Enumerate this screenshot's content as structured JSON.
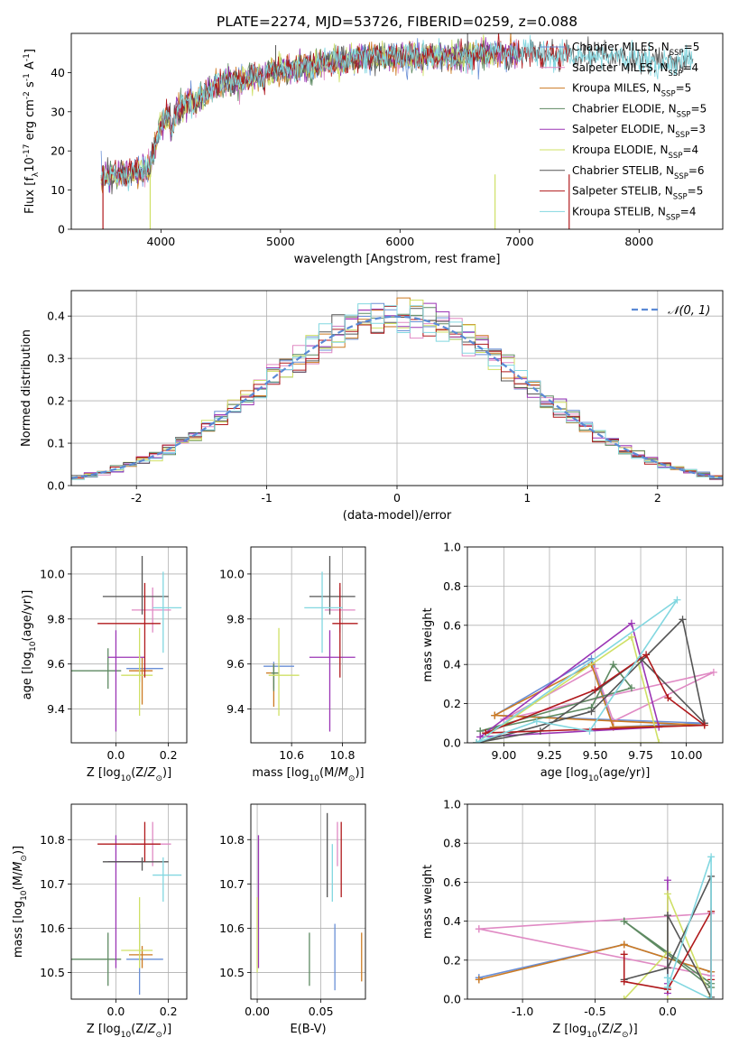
{
  "figure": {
    "title": "PLATE=2274, MJD=53726, FIBERID=0259, z=0.088",
    "models": [
      {
        "name": "Chabrier MILES",
        "nssp": "5",
        "color": "#6a8fd6"
      },
      {
        "name": "Salpeter MILES",
        "nssp": "4",
        "color": "#e08ac4"
      },
      {
        "name": "Kroupa MILES",
        "nssp": "5",
        "color": "#cc7a22"
      },
      {
        "name": "Chabrier ELODIE",
        "nssp": "5",
        "color": "#5e8a62"
      },
      {
        "name": "Salpeter ELODIE",
        "nssp": "3",
        "color": "#9b35b5"
      },
      {
        "name": "Kroupa ELODIE",
        "nssp": "4",
        "color": "#cfe066"
      },
      {
        "name": "Chabrier STELIB",
        "nssp": "6",
        "color": "#555555"
      },
      {
        "name": "Salpeter STELIB",
        "nssp": "5",
        "color": "#b0191c"
      },
      {
        "name": "Kroupa STELIB",
        "nssp": "4",
        "color": "#82d7e0"
      }
    ]
  },
  "chart_data": [
    {
      "type": "line",
      "panel": "spectrum",
      "title": "PLATE=2274, MJD=53726, FIBERID=0259, z=0.088",
      "xlabel": "wavelength [Angstrom, rest frame]",
      "ylabel": "Flux [fλ10^-17 erg cm^-2 s^-1 A^-1]",
      "xlim": [
        3250,
        8700
      ],
      "ylim": [
        0,
        50
      ],
      "xticks": [
        4000,
        5000,
        6000,
        7000,
        8000
      ],
      "yticks": [
        0,
        10,
        20,
        30,
        40
      ],
      "grid": false,
      "legend": "top-right",
      "continuum": {
        "x": [
          3500,
          3700,
          3900,
          4000,
          4100,
          4300,
          4500,
          4700,
          4900,
          5100,
          5300,
          5500,
          5700,
          5900,
          6100,
          6300,
          6500,
          6700,
          6900,
          7100,
          7300,
          7500,
          7700,
          7900,
          8100,
          8300
        ],
        "y": [
          13,
          14,
          15,
          27,
          30,
          33,
          37,
          38,
          40,
          41,
          42,
          43,
          44,
          44,
          44,
          44,
          44,
          45,
          45,
          45,
          44,
          44,
          44,
          44,
          43,
          43
        ]
      }
    },
    {
      "type": "bar",
      "panel": "residuals",
      "xlabel": "(data-model)/error",
      "ylabel": "Normed distribution",
      "xlim": [
        -2.5,
        2.5
      ],
      "ylim": [
        0,
        0.46
      ],
      "xticks": [
        -2,
        -1,
        0,
        1,
        2
      ],
      "yticks": [
        0.0,
        0.1,
        0.2,
        0.3,
        0.4
      ],
      "grid": true,
      "legend": "top-right",
      "reference": {
        "name": "𝒩(0, 1)",
        "color": "#5b8ad6",
        "style": "dashed"
      },
      "bin_width": 0.1
    },
    {
      "type": "scatter",
      "panel": "age-vs-Z",
      "xlabel": "Z [log10(Z/Z☉)]",
      "ylabel": "age [log10(age/yr)]",
      "xlim": [
        -0.17,
        0.27
      ],
      "ylim": [
        9.25,
        10.12
      ],
      "xticks": [
        0.0,
        0.2
      ],
      "yticks": [
        9.4,
        9.6,
        9.8,
        10.0
      ],
      "grid": true,
      "points": [
        {
          "x": 0.09,
          "y": 9.58,
          "xerr": [
            0.05,
            0.09
          ],
          "yerr": [
            0.06,
            0.06
          ],
          "color": "#6a8fd6"
        },
        {
          "x": 0.14,
          "y": 9.84,
          "xerr": [
            0.08,
            0.07
          ],
          "yerr": [
            0.1,
            0.1
          ],
          "color": "#e08ac4"
        },
        {
          "x": 0.1,
          "y": 9.57,
          "xerr": [
            0.05,
            0.04
          ],
          "yerr": [
            0.15,
            0.06
          ],
          "color": "#cc7a22"
        },
        {
          "x": -0.03,
          "y": 9.57,
          "xerr": [
            0.15,
            0.05
          ],
          "yerr": [
            0.08,
            0.1
          ],
          "color": "#5e8a62"
        },
        {
          "x": 0.0,
          "y": 9.63,
          "xerr": [
            0.03,
            0.11
          ],
          "yerr": [
            0.33,
            0.12
          ],
          "color": "#9b35b5"
        },
        {
          "x": 0.09,
          "y": 9.55,
          "xerr": [
            0.07,
            0.05
          ],
          "yerr": [
            0.18,
            0.21
          ],
          "color": "#cfe066"
        },
        {
          "x": 0.1,
          "y": 9.9,
          "xerr": [
            0.15,
            0.1
          ],
          "yerr": [
            0.08,
            0.18
          ],
          "color": "#555555"
        },
        {
          "x": 0.11,
          "y": 9.78,
          "xerr": [
            0.18,
            0.06
          ],
          "yerr": [
            0.24,
            0.18
          ],
          "color": "#b0191c"
        },
        {
          "x": 0.18,
          "y": 9.85,
          "xerr": [
            0.04,
            0.07
          ],
          "yerr": [
            0.2,
            0.16
          ],
          "color": "#82d7e0"
        }
      ]
    },
    {
      "type": "scatter",
      "panel": "age-vs-mass",
      "xlabel": "mass [log10(M/M☉)]",
      "ylabel": "",
      "xlim": [
        10.44,
        10.89
      ],
      "ylim": [
        9.25,
        10.12
      ],
      "xticks": [
        10.6,
        10.8
      ],
      "yticks": [
        9.4,
        9.6,
        9.8,
        10.0
      ],
      "grid": true,
      "points": [
        {
          "x": 10.53,
          "y": 9.59,
          "xerr": [
            0.04,
            0.08
          ],
          "yerr": [
            0.1,
            0.02
          ],
          "color": "#6a8fd6"
        },
        {
          "x": 10.79,
          "y": 9.84,
          "xerr": [
            0.06,
            0.06
          ],
          "yerr": [
            0.1,
            0.1
          ],
          "color": "#e08ac4"
        },
        {
          "x": 10.53,
          "y": 9.56,
          "xerr": [
            0.03,
            0.02
          ],
          "yerr": [
            0.15,
            0.04
          ],
          "color": "#cc7a22"
        },
        {
          "x": 10.53,
          "y": 9.56,
          "xerr": [
            0.01,
            0.02
          ],
          "yerr": [
            0.08,
            0.04
          ],
          "color": "#5e8a62"
        },
        {
          "x": 10.75,
          "y": 9.63,
          "xerr": [
            0.08,
            0.1
          ],
          "yerr": [
            0.33,
            0.12
          ],
          "color": "#9b35b5"
        },
        {
          "x": 10.55,
          "y": 9.55,
          "xerr": [
            0.04,
            0.08
          ],
          "yerr": [
            0.18,
            0.21
          ],
          "color": "#cfe066"
        },
        {
          "x": 10.75,
          "y": 9.9,
          "xerr": [
            0.08,
            0.1
          ],
          "yerr": [
            0.08,
            0.18
          ],
          "color": "#555555"
        },
        {
          "x": 10.79,
          "y": 9.78,
          "xerr": [
            0.03,
            0.07
          ],
          "yerr": [
            0.24,
            0.18
          ],
          "color": "#b0191c"
        },
        {
          "x": 10.72,
          "y": 9.85,
          "xerr": [
            0.07,
            0.08
          ],
          "yerr": [
            0.2,
            0.16
          ],
          "color": "#82d7e0"
        }
      ]
    },
    {
      "type": "line",
      "panel": "weight-vs-age",
      "xlabel": "age [log10(age/yr)]",
      "ylabel": "mass weight",
      "xlim": [
        8.8,
        10.2
      ],
      "ylim": [
        0,
        1.0
      ],
      "xticks": [
        9.0,
        9.25,
        9.5,
        9.75,
        10.0
      ],
      "yticks": [
        0.0,
        0.2,
        0.4,
        0.6,
        0.8,
        1.0
      ],
      "xticklabels": [
        "9.00",
        "9.25",
        "9.50",
        "9.75",
        "10.00"
      ],
      "grid": true,
      "series": [
        {
          "color": "#6a8fd6",
          "x": [
            8.95,
            9.48,
            9.6,
            10.1,
            8.95
          ],
          "y": [
            0.14,
            0.43,
            0.08,
            0.1,
            0.14
          ]
        },
        {
          "color": "#e08ac4",
          "x": [
            9.0,
            9.5,
            9.6,
            10.15,
            9.0
          ],
          "y": [
            0.12,
            0.38,
            0.11,
            0.36,
            0.12
          ]
        },
        {
          "color": "#cc7a22",
          "x": [
            8.95,
            9.48,
            9.6,
            10.1,
            8.95
          ],
          "y": [
            0.14,
            0.4,
            0.08,
            0.09,
            0.14
          ]
        },
        {
          "color": "#5e8a62",
          "x": [
            8.87,
            9.48,
            9.6,
            9.7,
            8.87
          ],
          "y": [
            0.06,
            0.18,
            0.4,
            0.28,
            0.06
          ]
        },
        {
          "color": "#9b35b5",
          "x": [
            8.87,
            9.7,
            9.85,
            8.87
          ],
          "y": [
            0.03,
            0.61,
            0.08,
            0.03
          ]
        },
        {
          "color": "#cfe066",
          "x": [
            8.85,
            9.7,
            9.85,
            8.85
          ],
          "y": [
            0.0,
            0.54,
            0.0,
            0.0
          ]
        },
        {
          "color": "#555555",
          "x": [
            8.85,
            9.48,
            9.98,
            10.1,
            9.75,
            9.2,
            8.85
          ],
          "y": [
            0.0,
            0.16,
            0.63,
            0.1,
            0.43,
            0.06,
            0.0
          ]
        },
        {
          "color": "#b0191c",
          "x": [
            8.9,
            9.5,
            9.78,
            9.9,
            10.1,
            8.9
          ],
          "y": [
            0.05,
            0.27,
            0.45,
            0.23,
            0.09,
            0.05
          ]
        },
        {
          "color": "#82d7e0",
          "x": [
            8.85,
            9.18,
            9.47,
            9.95,
            8.85
          ],
          "y": [
            0.0,
            0.11,
            0.06,
            0.73,
            0.0
          ]
        }
      ]
    },
    {
      "type": "scatter",
      "panel": "mass-vs-Z",
      "xlabel": "Z [log10(Z/Z☉)]",
      "ylabel": "mass [log10(M/M☉)]",
      "xlim": [
        -0.17,
        0.27
      ],
      "ylim": [
        10.44,
        10.88
      ],
      "xticks": [
        0.0,
        0.2
      ],
      "yticks": [
        10.5,
        10.6,
        10.7,
        10.8
      ],
      "grid": true,
      "points": [
        {
          "x": 0.09,
          "y": 10.53,
          "xerr": [
            0.05,
            0.09
          ],
          "yerr": [
            0.08,
            0.08
          ],
          "color": "#6a8fd6"
        },
        {
          "x": 0.14,
          "y": 10.79,
          "xerr": [
            0.08,
            0.07
          ],
          "yerr": [
            0.05,
            0.05
          ],
          "color": "#e08ac4"
        },
        {
          "x": 0.1,
          "y": 10.54,
          "xerr": [
            0.05,
            0.04
          ],
          "yerr": [
            0.03,
            0.02
          ],
          "color": "#cc7a22"
        },
        {
          "x": -0.03,
          "y": 10.53,
          "xerr": [
            0.15,
            0.05
          ],
          "yerr": [
            0.06,
            0.06
          ],
          "color": "#5e8a62"
        },
        {
          "x": 0.0,
          "y": 10.75,
          "xerr": [
            0.03,
            0.11
          ],
          "yerr": [
            0.24,
            0.06
          ],
          "color": "#9b35b5"
        },
        {
          "x": 0.09,
          "y": 10.55,
          "xerr": [
            0.07,
            0.05
          ],
          "yerr": [
            0.04,
            0.12
          ],
          "color": "#cfe066"
        },
        {
          "x": 0.1,
          "y": 10.75,
          "xerr": [
            0.15,
            0.1
          ],
          "yerr": [
            0.02,
            0.01
          ],
          "color": "#555555"
        },
        {
          "x": 0.11,
          "y": 10.79,
          "xerr": [
            0.18,
            0.06
          ],
          "yerr": [
            0.04,
            0.05
          ],
          "color": "#b0191c"
        },
        {
          "x": 0.18,
          "y": 10.72,
          "xerr": [
            0.04,
            0.07
          ],
          "yerr": [
            0.06,
            0.04
          ],
          "color": "#82d7e0"
        }
      ]
    },
    {
      "type": "scatter",
      "panel": "mass-vs-EBV",
      "xlabel": "E(B-V)",
      "ylabel": "",
      "xlim": [
        -0.005,
        0.085
      ],
      "ylim": [
        10.44,
        10.88
      ],
      "xticks": [
        0.0,
        0.05
      ],
      "yticks": [
        10.5,
        10.6,
        10.7,
        10.8
      ],
      "xticklabels": [
        "0.00",
        "0.05"
      ],
      "grid": true,
      "points": [
        {
          "x": 0.061,
          "y": 10.53,
          "xerr": [
            0,
            0
          ],
          "yerr": [
            0.07,
            0.08
          ],
          "color": "#6a8fd6"
        },
        {
          "x": 0.063,
          "y": 10.79,
          "xerr": [
            0,
            0
          ],
          "yerr": [
            0.05,
            0.05
          ],
          "color": "#e08ac4"
        },
        {
          "x": 0.082,
          "y": 10.54,
          "xerr": [
            0,
            0
          ],
          "yerr": [
            0.06,
            0.05
          ],
          "color": "#cc7a22"
        },
        {
          "x": 0.041,
          "y": 10.53,
          "xerr": [
            0,
            0
          ],
          "yerr": [
            0.06,
            0.06
          ],
          "color": "#5e8a62"
        },
        {
          "x": 0.001,
          "y": 10.75,
          "xerr": [
            0,
            0
          ],
          "yerr": [
            0.24,
            0.06
          ],
          "color": "#9b35b5"
        },
        {
          "x": 0.0,
          "y": 10.6,
          "xerr": [
            0,
            0
          ],
          "yerr": [
            0.1,
            0.07
          ],
          "color": "#cfe066"
        },
        {
          "x": 0.055,
          "y": 10.76,
          "xerr": [
            0,
            0
          ],
          "yerr": [
            0.09,
            0.1
          ],
          "color": "#555555"
        },
        {
          "x": 0.066,
          "y": 10.76,
          "xerr": [
            0,
            0
          ],
          "yerr": [
            0.09,
            0.08
          ],
          "color": "#b0191c"
        },
        {
          "x": 0.059,
          "y": 10.72,
          "xerr": [
            0,
            0
          ],
          "yerr": [
            0.06,
            0.07
          ],
          "color": "#82d7e0"
        }
      ]
    },
    {
      "type": "line",
      "panel": "weight-vs-Z",
      "xlabel": "Z [log10(Z/Z☉)]",
      "ylabel": "mass weight",
      "xlim": [
        -1.38,
        0.38
      ],
      "ylim": [
        0,
        1.0
      ],
      "xticks": [
        -1.0,
        -0.5,
        0.0
      ],
      "yticks": [
        0.0,
        0.2,
        0.4,
        0.6,
        0.8,
        1.0
      ],
      "grid": true,
      "series": [
        {
          "color": "#6a8fd6",
          "x": [
            -1.3,
            -0.3,
            0.3,
            -0.3,
            -1.3
          ],
          "y": [
            0.11,
            0.28,
            0.14,
            0.28,
            0.11
          ]
        },
        {
          "color": "#e08ac4",
          "x": [
            -1.3,
            0.3,
            0.3,
            -1.3
          ],
          "y": [
            0.36,
            0.44,
            0.12,
            0.36
          ]
        },
        {
          "color": "#cc7a22",
          "x": [
            -1.3,
            -0.3,
            0.3,
            -0.3,
            -1.3
          ],
          "y": [
            0.1,
            0.28,
            0.14,
            0.28,
            0.1
          ]
        },
        {
          "color": "#5e8a62",
          "x": [
            -0.3,
            0.3,
            0.3,
            -0.3
          ],
          "y": [
            0.4,
            0.06,
            0.08,
            0.4
          ]
        },
        {
          "color": "#9b35b5",
          "x": [
            0.0,
            0.0,
            0.0
          ],
          "y": [
            0.61,
            0.08,
            0.03
          ]
        },
        {
          "color": "#cfe066",
          "x": [
            -0.3,
            0.0,
            0.0,
            0.3,
            0.0
          ],
          "y": [
            0.0,
            0.24,
            0.54,
            0.0,
            0.0
          ]
        },
        {
          "color": "#555555",
          "x": [
            -0.3,
            0.0,
            0.3,
            0.3,
            0.0,
            0.0
          ],
          "y": [
            0.1,
            0.16,
            0.63,
            0.01,
            0.43,
            0.06
          ]
        },
        {
          "color": "#b0191c",
          "x": [
            -0.3,
            -0.3,
            0.0,
            0.3,
            0.3
          ],
          "y": [
            0.23,
            0.09,
            0.05,
            0.45,
            0.1
          ]
        },
        {
          "color": "#82d7e0",
          "x": [
            0.0,
            0.0,
            0.3,
            0.3,
            0.0
          ],
          "y": [
            0.11,
            0.06,
            0.73,
            0.0,
            0.11
          ]
        }
      ]
    }
  ]
}
